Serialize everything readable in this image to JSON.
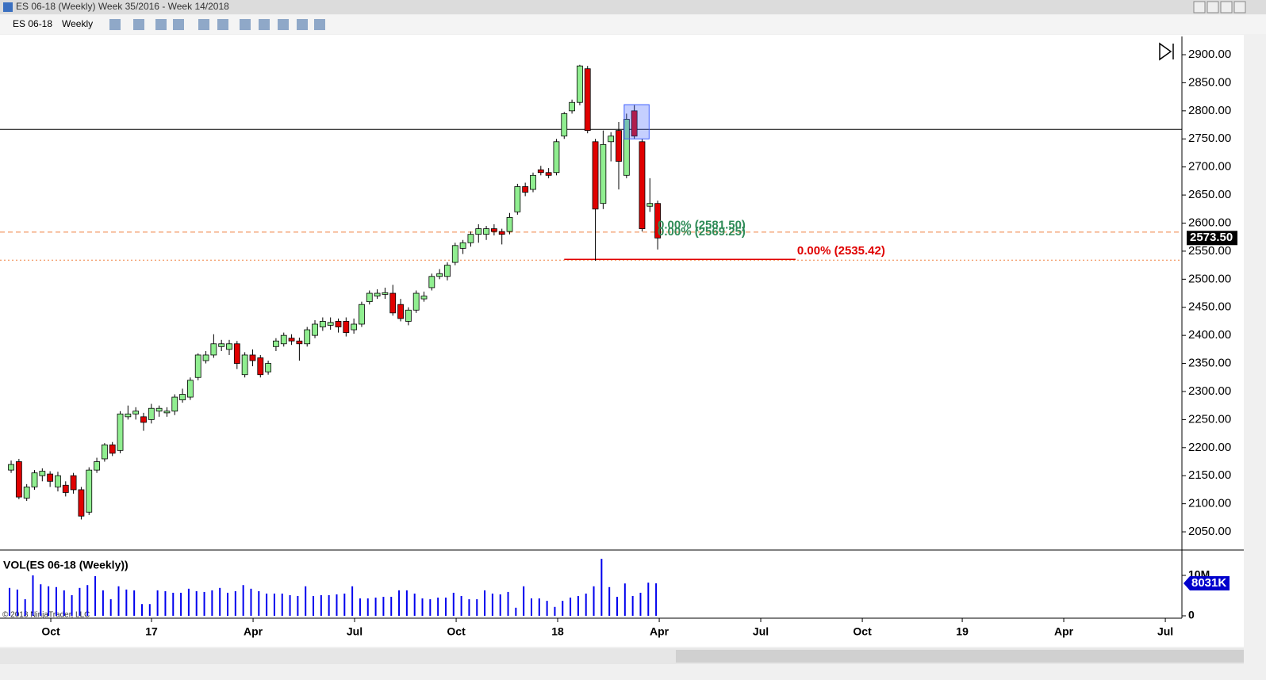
{
  "window": {
    "title": "ES 06-18 (Weekly)  Week 35/2016 - Week 14/2018",
    "instrument": "ES 06-18",
    "interval": "Weekly"
  },
  "copyright": "© 2018 NinjaTrader, LLC",
  "chart_data": [
    {
      "type": "candlestick",
      "up_color": "#90ee90",
      "down_color": "#e00000",
      "open": [
        2160,
        2175,
        2110,
        2130,
        2150,
        2153,
        2130,
        2133,
        2150,
        2125,
        2085,
        2160,
        2180,
        2205,
        2195,
        2255,
        2260,
        2255,
        2250,
        2265,
        2262,
        2265,
        2285,
        2290,
        2325,
        2355,
        2365,
        2380,
        2375,
        2385,
        2330,
        2365,
        2360,
        2335,
        2380,
        2385,
        2395,
        2390,
        2385,
        2400,
        2415,
        2418,
        2425,
        2425,
        2410,
        2420,
        2460,
        2470,
        2473,
        2475,
        2455,
        2425,
        2445,
        2465,
        2485,
        2505,
        2505,
        2530,
        2555,
        2565,
        2580,
        2580,
        2590,
        2585,
        2585,
        2620,
        2665,
        2660,
        2695,
        2690,
        2690,
        2755,
        2800,
        2815,
        2875,
        2745,
        2635,
        2745,
        2765,
        2685,
        2800,
        2745,
        2630,
        2635
      ],
      "high": [
        2177,
        2180,
        2135,
        2160,
        2163,
        2158,
        2157,
        2140,
        2155,
        2130,
        2165,
        2182,
        2208,
        2210,
        2265,
        2275,
        2272,
        2262,
        2278,
        2275,
        2272,
        2295,
        2305,
        2325,
        2368,
        2372,
        2402,
        2392,
        2392,
        2390,
        2370,
        2375,
        2365,
        2355,
        2395,
        2405,
        2402,
        2396,
        2415,
        2427,
        2432,
        2432,
        2430,
        2432,
        2430,
        2460,
        2480,
        2482,
        2485,
        2490,
        2465,
        2450,
        2480,
        2478,
        2510,
        2518,
        2530,
        2565,
        2570,
        2585,
        2598,
        2595,
        2598,
        2590,
        2618,
        2670,
        2672,
        2690,
        2702,
        2698,
        2750,
        2798,
        2820,
        2882,
        2880,
        2750,
        2765,
        2762,
        2780,
        2795,
        2810,
        2750,
        2680,
        2640
      ],
      "low": [
        2155,
        2108,
        2105,
        2125,
        2140,
        2130,
        2122,
        2113,
        2118,
        2072,
        2080,
        2155,
        2175,
        2185,
        2190,
        2250,
        2250,
        2230,
        2243,
        2255,
        2255,
        2258,
        2280,
        2285,
        2320,
        2350,
        2360,
        2372,
        2365,
        2340,
        2325,
        2345,
        2325,
        2330,
        2372,
        2380,
        2383,
        2355,
        2380,
        2395,
        2408,
        2410,
        2405,
        2398,
        2403,
        2415,
        2455,
        2465,
        2465,
        2435,
        2425,
        2418,
        2440,
        2460,
        2480,
        2500,
        2498,
        2525,
        2545,
        2558,
        2565,
        2570,
        2578,
        2562,
        2580,
        2615,
        2648,
        2655,
        2685,
        2680,
        2685,
        2750,
        2795,
        2810,
        2760,
        2533,
        2625,
        2710,
        2660,
        2680,
        2750,
        2585,
        2620,
        2553
      ],
      "close": [
        2170,
        2112,
        2130,
        2155,
        2158,
        2140,
        2150,
        2120,
        2125,
        2078,
        2160,
        2175,
        2205,
        2190,
        2260,
        2260,
        2265,
        2245,
        2270,
        2270,
        2265,
        2290,
        2295,
        2320,
        2365,
        2365,
        2385,
        2385,
        2385,
        2350,
        2365,
        2355,
        2330,
        2350,
        2390,
        2400,
        2390,
        2385,
        2410,
        2420,
        2425,
        2423,
        2415,
        2405,
        2420,
        2455,
        2475,
        2475,
        2476,
        2440,
        2430,
        2445,
        2475,
        2470,
        2505,
        2510,
        2525,
        2560,
        2565,
        2580,
        2590,
        2590,
        2585,
        2580,
        2610,
        2665,
        2655,
        2685,
        2690,
        2685,
        2745,
        2795,
        2815,
        2880,
        2765,
        2625,
        2740,
        2755,
        2710,
        2785,
        2755,
        2590,
        2635,
        2573.5
      ],
      "ylim": [
        2019,
        2932.5
      ],
      "yticks": [
        {
          "value": 2050,
          "label": "2050.00"
        },
        {
          "value": 2100,
          "label": "2100.00"
        },
        {
          "value": 2150,
          "label": "2150.00"
        },
        {
          "value": 2200,
          "label": "2200.00"
        },
        {
          "value": 2250,
          "label": "2250.00"
        },
        {
          "value": 2300,
          "label": "2300.00"
        },
        {
          "value": 2350,
          "label": "2350.00"
        },
        {
          "value": 2400,
          "label": "2400.00"
        },
        {
          "value": 2450,
          "label": "2450.00"
        },
        {
          "value": 2500,
          "label": "2500.00"
        },
        {
          "value": 2550,
          "label": "2550.00"
        },
        {
          "value": 2600,
          "label": "2600.00"
        },
        {
          "value": 2650,
          "label": "2650.00"
        },
        {
          "value": 2700,
          "label": "2700.00"
        },
        {
          "value": 2750,
          "label": "2750.00"
        },
        {
          "value": 2800,
          "label": "2800.00"
        },
        {
          "value": 2850,
          "label": "2850.00"
        },
        {
          "value": 2900,
          "label": "2900.00"
        }
      ],
      "xlim": [
        -1.43,
        150.3
      ],
      "xticks": [
        {
          "value": 5.09,
          "label": "Oct"
        },
        {
          "value": 18.02,
          "label": "17"
        },
        {
          "value": 31.06,
          "label": "Apr"
        },
        {
          "value": 44.09,
          "label": "Jul"
        },
        {
          "value": 57.13,
          "label": "Oct"
        },
        {
          "value": 70.16,
          "label": "18"
        },
        {
          "value": 83.2,
          "label": "Apr"
        },
        {
          "value": 96.23,
          "label": "Jul"
        },
        {
          "value": 109.27,
          "label": "Oct"
        },
        {
          "value": 122.1,
          "label": "19"
        },
        {
          "value": 135.13,
          "label": "Apr"
        },
        {
          "value": 148.17,
          "label": "Jul"
        }
      ],
      "lines": [
        {
          "value": 2767,
          "color": "#000000",
          "dash": "none"
        },
        {
          "value": 2584,
          "color": "#f08040",
          "dash": "6 4"
        },
        {
          "value": 2534,
          "color": "#f08040",
          "dash": "2 3"
        }
      ],
      "fib_labels": [
        {
          "text": "0.00% (2581.50)",
          "value": 2581.5,
          "color": "#2e8b57"
        },
        {
          "text": "0.00% (2569.25)",
          "value": 2569.25,
          "color": "#2e8b57"
        },
        {
          "text": "0.00% (2535.42)",
          "value": 2535.42,
          "color": "#e00000"
        }
      ],
      "segment": {
        "value": 2535.42,
        "x": [
          71,
          100.7
        ],
        "color": "#e00000"
      },
      "box": {
        "x": [
          78.7,
          81.9
        ],
        "y": [
          2750,
          2811
        ],
        "color": "#4060ff"
      },
      "last_price": {
        "value": 2573.5,
        "label": "2573.50"
      }
    },
    {
      "type": "bar",
      "title": "VOL(ES 06-18 (Weekly))",
      "color": "#0000ee",
      "values": [
        6900000,
        6500000,
        4100000,
        10000000,
        7800000,
        7300000,
        7100000,
        6300000,
        5100000,
        6900000,
        7600000,
        9800000,
        6300000,
        4100000,
        7300000,
        6500000,
        6300000,
        2900000,
        2900000,
        6300000,
        6100000,
        5700000,
        5700000,
        6700000,
        6100000,
        5900000,
        6300000,
        6900000,
        5700000,
        6100000,
        7600000,
        6700000,
        6100000,
        5500000,
        5500000,
        5500000,
        5100000,
        4900000,
        7300000,
        4900000,
        5100000,
        5100000,
        5300000,
        5500000,
        7300000,
        4300000,
        4300000,
        4500000,
        4700000,
        4700000,
        6300000,
        6300000,
        5500000,
        4300000,
        4100000,
        4500000,
        4500000,
        5700000,
        4900000,
        4100000,
        4100000,
        6300000,
        5500000,
        5300000,
        5900000,
        2000000,
        7300000,
        4300000,
        4300000,
        3700000,
        2200000,
        3700000,
        4500000,
        4900000,
        5500000,
        7300000,
        14100000,
        7100000,
        4700000,
        8000000,
        4900000,
        5700000,
        8200000,
        8031000
      ],
      "ylim": [
        0,
        15880000
      ],
      "yticks": [
        0,
        {
          "value": 10000000,
          "label": "10M"
        }
      ],
      "last_label": "8031K"
    }
  ]
}
